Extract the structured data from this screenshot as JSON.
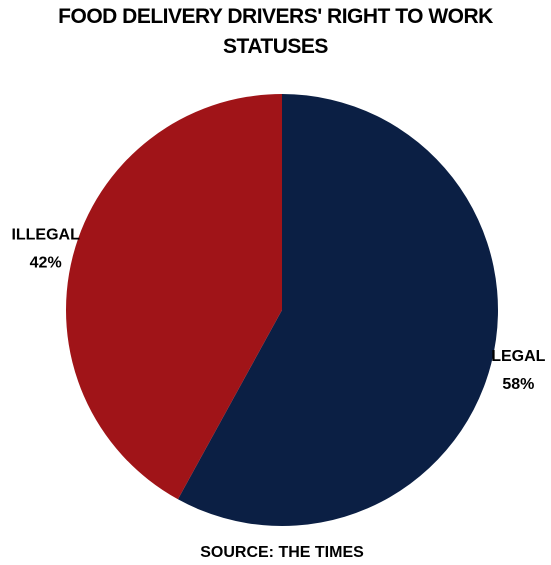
{
  "chart_data": {
    "type": "pie",
    "title": "FOOD DELIVERY DRIVERS' RIGHT TO WORK STATUSES",
    "categories": [
      "LEGAL",
      "ILLEGAL"
    ],
    "values": [
      58,
      42
    ],
    "value_labels": [
      "58%",
      "42%"
    ],
    "colors": [
      "#0b1f44",
      "#a01418"
    ],
    "source": "SOURCE: THE TIMES"
  }
}
